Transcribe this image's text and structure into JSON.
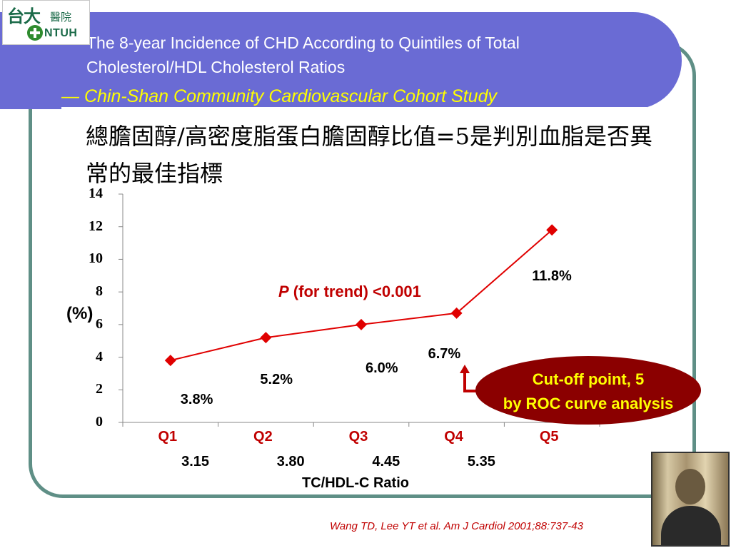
{
  "header": {
    "title_line1": "The 8-year Incidence of CHD According to Quintiles of Total",
    "title_line2": "Cholesterol/HDL Cholesterol Ratios",
    "subtitle": "— Chin-Shan Community Cardiovascular Cohort Study"
  },
  "logo": {
    "chinese": "台大",
    "chinese_small": "醫院",
    "abbr": "NTUH",
    "icon": "medical-cross-icon"
  },
  "chinese_title": "總膽固醇/高密度脂蛋白膽固醇比值=5是判別血脂是否異常的最佳指標",
  "chart_data": {
    "type": "line",
    "categories": [
      "Q1",
      "Q2",
      "Q3",
      "Q4",
      "Q5"
    ],
    "ratio_boundaries": [
      "3.15",
      "3.80",
      "4.45",
      "5.35"
    ],
    "values": [
      3.8,
      5.2,
      6.0,
      6.7,
      11.8
    ],
    "data_labels": [
      "3.8%",
      "5.2%",
      "6.0%",
      "6.7%",
      "11.8%"
    ],
    "ylabel": "(%)",
    "xlabel": "TC/HDL-C Ratio",
    "ylim": [
      0,
      14
    ],
    "yticks": [
      0,
      2,
      4,
      6,
      8,
      10,
      12,
      14
    ],
    "annotation_p": "P",
    "annotation_rest": " (for trend) <0.001",
    "line_color": "#e00000",
    "category_color": "#c00000"
  },
  "callout": {
    "line1": "Cut-off point, 5",
    "line2": "by ROC curve analysis",
    "fill": "#8b0000",
    "text_color": "#ffff00"
  },
  "citation": "Wang TD, Lee YT et al. Am J Cardiol 2001;88:737-43",
  "colors": {
    "header": "#6a6bd4",
    "frame": "#5f8f86",
    "subtitle": "#ffff00"
  }
}
